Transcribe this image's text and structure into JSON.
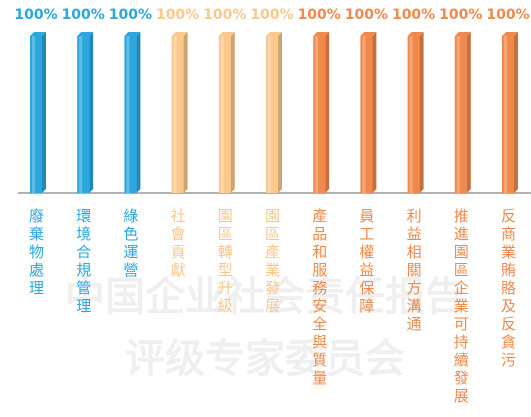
{
  "chart_data": {
    "type": "bar",
    "categories": [
      "廢棄物處理",
      "環境合規管理",
      "綠色運營",
      "社會貢獻",
      "園區轉型升級",
      "園區產業發展",
      "產品和服務安全與質量",
      "員工權益保障",
      "利益相關方溝通",
      "推進園區企業可持續發展",
      "反商業賄賂及反貪污"
    ],
    "values": [
      100,
      100,
      100,
      100,
      100,
      100,
      100,
      100,
      100,
      100,
      100
    ],
    "value_labels": [
      "100%",
      "100%",
      "100%",
      "100%",
      "100%",
      "100%",
      "100%",
      "100%",
      "100%",
      "100%",
      "100%"
    ],
    "colors": [
      "#2aa7df",
      "#2aa7df",
      "#2aa7df",
      "#fbc88c",
      "#fbc88c",
      "#fbc88c",
      "#f0894b",
      "#f0894b",
      "#f0894b",
      "#f0894b",
      "#f0894b"
    ],
    "watermark": [
      "中国企业社会责任报告",
      "评级专家委员会"
    ]
  }
}
